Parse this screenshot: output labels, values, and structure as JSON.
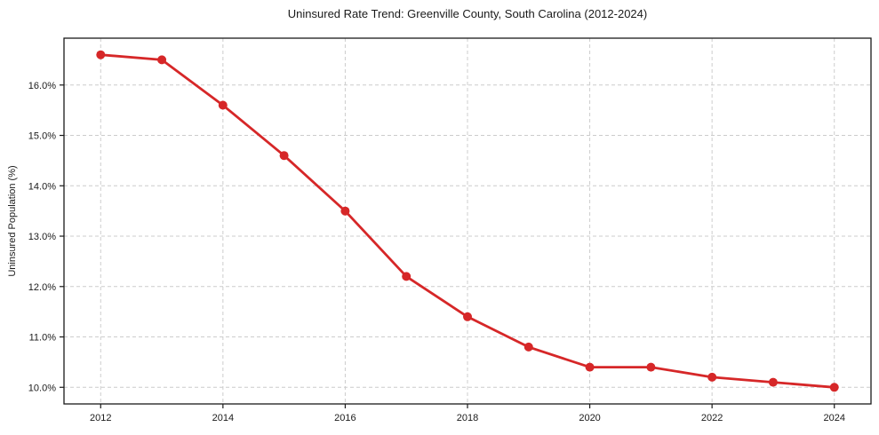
{
  "chart_data": {
    "type": "line",
    "title": "Uninsured Rate Trend: Greenville County, South Carolina (2012-2024)",
    "xlabel": "",
    "ylabel": "Uninsured Population (%)",
    "x": [
      2012,
      2013,
      2014,
      2015,
      2016,
      2017,
      2018,
      2019,
      2020,
      2021,
      2022,
      2023,
      2024
    ],
    "series": [
      {
        "name": "Uninsured rate",
        "values": [
          16.6,
          16.5,
          15.6,
          14.6,
          13.5,
          12.2,
          11.4,
          10.8,
          10.4,
          10.4,
          10.2,
          10.1,
          10.0
        ],
        "color": "#d62728",
        "marker": "circle"
      }
    ],
    "xticks": [
      2012,
      2014,
      2016,
      2018,
      2020,
      2022,
      2024
    ],
    "xtick_labels": [
      "2012",
      "2014",
      "2016",
      "2018",
      "2020",
      "2022",
      "2024"
    ],
    "yticks": [
      10.0,
      11.0,
      12.0,
      13.0,
      14.0,
      15.0,
      16.0
    ],
    "ytick_labels": [
      "10.0%",
      "11.0%",
      "12.0%",
      "13.0%",
      "14.0%",
      "15.0%",
      "16.0%"
    ],
    "xlim": [
      2011.4,
      2024.6
    ],
    "ylim": [
      9.67,
      16.93
    ],
    "grid": true,
    "grid_color": "#cccccc",
    "grid_style": "dashed",
    "legend_position": "none",
    "spine_color": "#1a1a1a",
    "background": "#ffffff"
  }
}
